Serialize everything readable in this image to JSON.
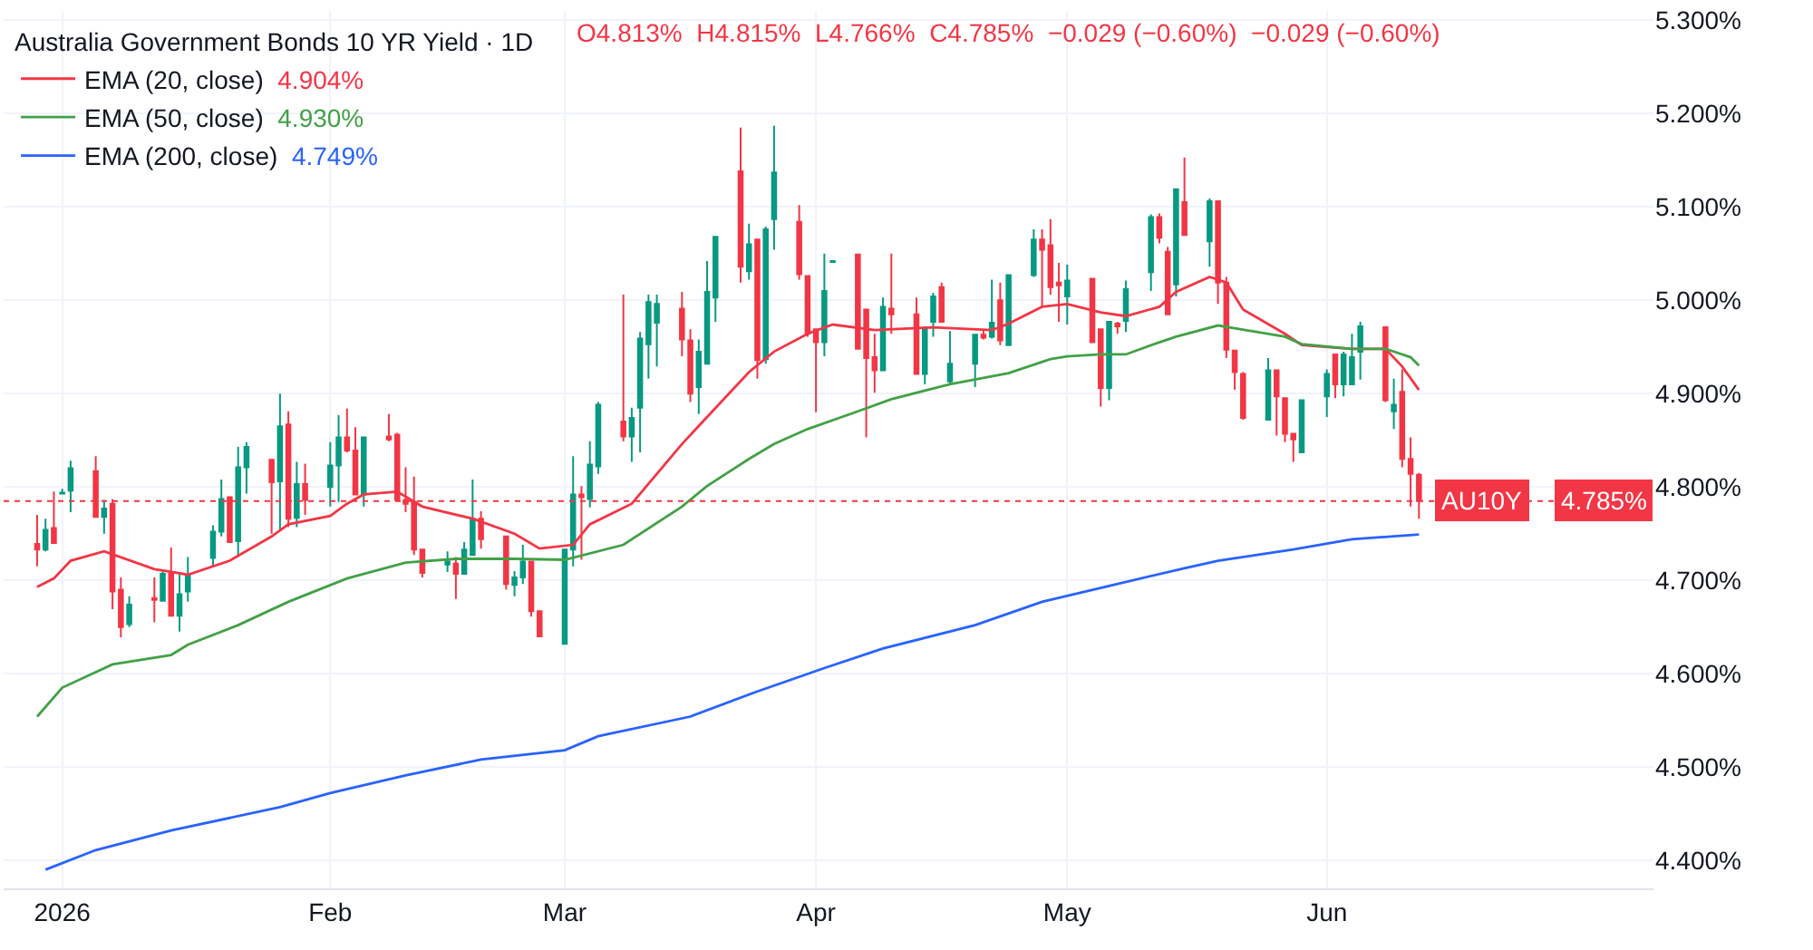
{
  "chart_data": {
    "type": "candlestick",
    "title": "Australia Government Bonds 10 YR Yield · 1D",
    "annotations": [
      "O4.813%  H4.815%  L4.766%  C4.785%  −0.029 (−0.60%)  −0.029 (−0.60%)",
      {
        "text": "4.785%",
        "y": 4.785
      }
    ],
    "x": [
      "2025-12-29",
      "2025-12-30",
      "2025-12-31",
      "2026-01-01",
      "2026-01-02",
      "2026-01-05",
      "2026-01-06",
      "2026-01-07",
      "2026-01-08",
      "2026-01-09",
      "2026-01-12",
      "2026-01-13",
      "2026-01-14",
      "2026-01-15",
      "2026-01-16",
      "2026-01-19",
      "2026-01-20",
      "2026-01-21",
      "2026-01-22",
      "2026-01-23",
      "2026-01-26",
      "2026-01-27",
      "2026-01-28",
      "2026-01-29",
      "2026-01-30",
      "2026-02-02",
      "2026-02-03",
      "2026-02-04",
      "2026-02-05",
      "2026-02-06",
      "2026-02-09",
      "2026-02-10",
      "2026-02-11",
      "2026-02-12",
      "2026-02-13",
      "2026-02-16",
      "2026-02-17",
      "2026-02-18",
      "2026-02-19",
      "2026-02-20",
      "2026-02-23",
      "2026-02-24",
      "2026-02-25",
      "2026-02-26",
      "2026-02-27",
      "2026-03-02",
      "2026-03-03",
      "2026-03-04",
      "2026-03-05",
      "2026-03-06",
      "2026-03-09",
      "2026-03-10",
      "2026-03-11",
      "2026-03-12",
      "2026-03-13",
      "2026-03-16",
      "2026-03-17",
      "2026-03-18",
      "2026-03-19",
      "2026-03-20",
      "2026-03-23",
      "2026-03-24",
      "2026-03-25",
      "2026-03-26",
      "2026-03-27",
      "2026-03-30",
      "2026-03-31",
      "2026-04-01",
      "2026-04-02",
      "2026-04-03",
      "2026-04-06",
      "2026-04-07",
      "2026-04-08",
      "2026-04-09",
      "2026-04-10",
      "2026-04-13",
      "2026-04-14",
      "2026-04-15",
      "2026-04-16",
      "2026-04-17",
      "2026-04-20",
      "2026-04-21",
      "2026-04-22",
      "2026-04-23",
      "2026-04-24",
      "2026-04-27",
      "2026-04-28",
      "2026-04-29",
      "2026-04-30",
      "2026-05-01",
      "2026-05-04",
      "2026-05-05",
      "2026-05-06",
      "2026-05-07",
      "2026-05-08",
      "2026-05-11",
      "2026-05-12",
      "2026-05-13",
      "2026-05-14",
      "2026-05-15",
      "2026-05-18",
      "2026-05-19",
      "2026-05-20",
      "2026-05-21",
      "2026-05-22",
      "2026-05-25",
      "2026-05-26",
      "2026-05-27",
      "2026-05-28",
      "2026-05-29",
      "2026-06-01",
      "2026-06-02",
      "2026-06-03",
      "2026-06-04",
      "2026-06-05",
      "2026-06-08",
      "2026-06-09",
      "2026-06-10",
      "2026-06-11",
      "2026-06-12"
    ],
    "ohlc": [
      [
        4.739,
        4.77,
        4.715,
        4.733
      ],
      [
        4.733,
        4.766,
        4.731,
        4.754
      ],
      [
        4.756,
        4.795,
        4.739,
        4.74
      ],
      [
        4.793,
        4.798,
        4.792,
        4.794
      ],
      [
        4.796,
        4.828,
        4.773,
        4.82
      ],
      [
        4.817,
        4.833,
        4.767,
        4.768
      ],
      [
        4.768,
        4.786,
        4.75,
        4.777
      ],
      [
        4.782,
        4.787,
        4.669,
        4.688
      ],
      [
        4.69,
        4.703,
        4.639,
        4.65
      ],
      [
        4.653,
        4.683,
        4.65,
        4.674
      ],
      [
        4.681,
        4.703,
        4.655,
        4.679
      ],
      [
        4.678,
        4.709,
        4.677,
        4.707
      ],
      [
        4.707,
        4.735,
        4.661,
        4.662
      ],
      [
        4.662,
        4.706,
        4.645,
        4.685
      ],
      [
        4.688,
        4.725,
        4.677,
        4.706
      ],
      [
        4.724,
        4.759,
        4.715,
        4.752
      ],
      [
        4.752,
        4.808,
        4.747,
        4.787
      ],
      [
        4.789,
        4.789,
        4.74,
        4.741
      ],
      [
        4.742,
        4.843,
        4.725,
        4.821
      ],
      [
        4.821,
        4.848,
        4.793,
        4.843
      ],
      [
        4.829,
        4.829,
        4.75,
        4.805
      ],
      [
        4.806,
        4.9,
        4.754,
        4.865
      ],
      [
        4.867,
        4.881,
        4.757,
        4.766
      ],
      [
        4.767,
        4.827,
        4.757,
        4.803
      ],
      [
        4.803,
        4.825,
        4.77,
        4.786
      ],
      [
        4.8,
        4.848,
        4.779,
        4.823
      ],
      [
        4.823,
        4.877,
        4.784,
        4.853
      ],
      [
        4.853,
        4.884,
        4.837,
        4.839
      ],
      [
        4.839,
        4.864,
        4.791,
        4.792
      ],
      [
        4.792,
        4.854,
        4.779,
        4.853
      ],
      [
        4.854,
        4.878,
        4.849,
        4.851
      ],
      [
        4.856,
        4.858,
        4.784,
        4.786
      ],
      [
        4.786,
        4.821,
        4.773,
        4.782
      ],
      [
        4.784,
        4.811,
        4.727,
        4.733
      ],
      [
        4.733,
        4.733,
        4.703,
        4.708
      ],
      [
        4.717,
        4.731,
        4.709,
        4.72
      ],
      [
        4.718,
        4.725,
        4.68,
        4.707
      ],
      [
        4.707,
        4.741,
        4.706,
        4.733
      ],
      [
        4.727,
        4.808,
        4.727,
        4.766
      ],
      [
        4.766,
        4.774,
        4.734,
        4.744
      ],
      [
        4.747,
        4.747,
        4.69,
        4.696
      ],
      [
        4.695,
        4.71,
        4.683,
        4.703
      ],
      [
        4.703,
        4.738,
        4.696,
        4.72
      ],
      [
        4.72,
        4.72,
        4.661,
        4.667
      ],
      [
        4.667,
        4.667,
        4.639,
        4.64
      ],
      [
        4.632,
        4.734,
        4.632,
        4.733
      ],
      [
        4.733,
        4.833,
        4.715,
        4.792
      ],
      [
        4.792,
        4.801,
        4.722,
        4.789
      ],
      [
        4.787,
        4.849,
        4.778,
        4.824
      ],
      [
        4.822,
        4.891,
        4.814,
        4.888
      ],
      [
        4.87,
        5.006,
        4.849,
        4.854
      ],
      [
        4.854,
        4.885,
        4.827,
        4.874
      ],
      [
        4.885,
        4.966,
        4.837,
        4.959
      ],
      [
        4.953,
        5.006,
        4.916,
        4.998
      ],
      [
        4.976,
        5.006,
        4.929,
        4.996
      ],
      [
        4.991,
        5.009,
        4.94,
        4.958
      ],
      [
        4.957,
        4.969,
        4.891,
        4.9
      ],
      [
        4.907,
        4.958,
        4.878,
        4.945
      ],
      [
        4.932,
        5.042,
        4.932,
        5.009
      ],
      [
        5.003,
        5.068,
        4.977,
        5.068
      ],
      [
        5.138,
        5.185,
        5.019,
        5.036
      ],
      [
        5.031,
        5.082,
        5.022,
        5.06
      ],
      [
        5.065,
        5.065,
        4.916,
        4.936
      ],
      [
        4.937,
        5.079,
        4.932,
        5.076
      ],
      [
        5.087,
        5.187,
        5.054,
        5.137
      ],
      [
        5.084,
        5.102,
        5.022,
        5.028
      ],
      [
        5.026,
        5.026,
        4.961,
        4.964
      ],
      [
        4.969,
        4.969,
        4.88,
        4.955
      ],
      [
        4.955,
        5.05,
        4.94,
        5.01
      ],
      [
        5.041,
        5.043,
        5.041,
        5.042
      ],
      [
        5.049,
        5.049,
        4.948,
        4.948
      ],
      [
        4.99,
        4.99,
        4.853,
        4.938
      ],
      [
        4.939,
        4.964,
        4.901,
        4.925
      ],
      [
        4.925,
        5.003,
        4.925,
        4.993
      ],
      [
        4.991,
        5.05,
        4.964,
        4.985
      ],
      [
        4.985,
        5.003,
        4.92,
        4.921
      ],
      [
        4.921,
        4.972,
        4.91,
        4.97
      ],
      [
        4.977,
        5.008,
        4.961,
        5.004
      ],
      [
        5.014,
        5.019,
        4.976,
        4.977
      ],
      [
        4.913,
        4.967,
        4.91,
        4.932
      ],
      [
        4.932,
        4.963,
        4.907,
        4.963
      ],
      [
        4.963,
        4.968,
        4.958,
        4.96
      ],
      [
        4.961,
        5.022,
        4.959,
        4.976
      ],
      [
        5.0,
        5.019,
        4.952,
        4.957
      ],
      [
        4.952,
        5.027,
        4.952,
        5.027
      ],
      [
        5.027,
        5.076,
        5.025,
        5.065
      ],
      [
        5.065,
        5.076,
        4.993,
        5.054
      ],
      [
        5.059,
        5.087,
        5.006,
        5.014
      ],
      [
        5.019,
        5.04,
        4.977,
        5.016
      ],
      [
        5.004,
        5.038,
        4.974,
        5.021
      ],
      [
        5.023,
        5.023,
        4.955,
        4.955
      ],
      [
        4.969,
        4.969,
        4.886,
        4.906
      ],
      [
        4.906,
        4.977,
        4.893,
        4.977
      ],
      [
        4.975,
        4.977,
        4.964,
        4.972
      ],
      [
        4.978,
        5.021,
        4.966,
        5.012
      ],
      [
        5.03,
        5.092,
        5.01,
        5.089
      ],
      [
        5.089,
        5.093,
        5.061,
        5.067
      ],
      [
        5.052,
        5.057,
        4.985,
        4.985
      ],
      [
        5.017,
        5.119,
        5.004,
        5.119
      ],
      [
        5.105,
        5.153,
        5.07,
        5.07
      ],
      [
        5.063,
        5.109,
        5.036,
        5.106
      ],
      [
        5.106,
        5.106,
        4.996,
        5.019
      ],
      [
        5.019,
        5.025,
        4.938,
        4.947
      ],
      [
        4.946,
        4.946,
        4.904,
        4.923
      ],
      [
        4.921,
        4.923,
        4.872,
        4.874
      ],
      [
        4.872,
        4.938,
        4.872,
        4.925
      ],
      [
        4.925,
        4.925,
        4.855,
        4.897
      ],
      [
        4.895,
        4.895,
        4.848,
        4.857
      ],
      [
        4.857,
        4.857,
        4.827,
        4.851
      ],
      [
        4.837,
        4.894,
        4.837,
        4.893
      ],
      [
        4.897,
        4.926,
        4.875,
        4.921
      ],
      [
        4.942,
        4.942,
        4.895,
        4.91
      ],
      [
        4.91,
        4.945,
        4.897,
        4.942
      ],
      [
        4.91,
        4.964,
        4.91,
        4.939
      ],
      [
        4.945,
        4.977,
        4.915,
        4.972
      ],
      [
        4.971,
        4.972,
        4.891,
        4.893
      ],
      [
        4.881,
        4.916,
        4.862,
        4.888
      ],
      [
        4.902,
        4.926,
        4.821,
        4.83
      ],
      [
        4.83,
        4.853,
        4.779,
        4.814
      ],
      [
        4.813,
        4.815,
        4.766,
        4.785
      ]
    ],
    "colors": [
      "#f23645",
      "#089981",
      "#f23645",
      "#089981",
      "#089981",
      "#f23645",
      "#089981",
      "#f23645",
      "#f23645",
      "#089981",
      "#f23645",
      "#089981",
      "#f23645",
      "#089981",
      "#089981",
      "#089981",
      "#089981",
      "#f23645",
      "#089981",
      "#089981",
      "#f23645",
      "#089981",
      "#f23645",
      "#089981",
      "#f23645",
      "#089981",
      "#089981",
      "#f23645",
      "#f23645",
      "#089981",
      "#f23645",
      "#f23645",
      "#f23645",
      "#f23645",
      "#f23645",
      "#089981",
      "#f23645",
      "#089981",
      "#089981",
      "#f23645",
      "#f23645",
      "#089981",
      "#089981",
      "#f23645",
      "#f23645",
      "#089981",
      "#089981",
      "#f23645",
      "#089981",
      "#089981",
      "#f23645",
      "#089981",
      "#089981",
      "#089981",
      "#089981",
      "#f23645",
      "#f23645",
      "#089981",
      "#089981",
      "#089981",
      "#f23645",
      "#089981",
      "#f23645",
      "#089981",
      "#089981",
      "#f23645",
      "#f23645",
      "#f23645",
      "#089981",
      "#089981",
      "#f23645",
      "#f23645",
      "#f23645",
      "#089981",
      "#f23645",
      "#f23645",
      "#089981",
      "#089981",
      "#f23645",
      "#089981",
      "#089981",
      "#f23645",
      "#089981",
      "#f23645",
      "#089981",
      "#089981",
      "#f23645",
      "#f23645",
      "#f23645",
      "#089981",
      "#f23645",
      "#f23645",
      "#089981",
      "#f23645",
      "#089981",
      "#089981",
      "#f23645",
      "#f23645",
      "#089981",
      "#f23645",
      "#089981",
      "#f23645",
      "#f23645",
      "#f23645",
      "#f23645",
      "#089981",
      "#f23645",
      "#f23645",
      "#f23645",
      "#089981",
      "#089981",
      "#f23645",
      "#089981",
      "#089981",
      "#089981",
      "#f23645",
      "#089981",
      "#f23645",
      "#f23645",
      "#f23645"
    ],
    "series": [
      {
        "type": "line",
        "name": "EMA (20, close) 4.904%",
        "color": "#f23645",
        "x": [
          "2025-12-29",
          "2025-12-31",
          "2026-01-02",
          "2026-01-06",
          "2026-01-12",
          "2026-01-14",
          "2026-01-16",
          "2026-01-21",
          "2026-01-26",
          "2026-01-28",
          "2026-02-02",
          "2026-02-04",
          "2026-02-06",
          "2026-02-10",
          "2026-02-13",
          "2026-02-19",
          "2026-02-24",
          "2026-02-27",
          "2026-03-03",
          "2026-03-05",
          "2026-03-10",
          "2026-03-16",
          "2026-03-19",
          "2026-03-24",
          "2026-03-27",
          "2026-03-31",
          "2026-04-03",
          "2026-04-08",
          "2026-04-15",
          "2026-04-22",
          "2026-04-24",
          "2026-04-28",
          "2026-05-01",
          "2026-05-05",
          "2026-05-08",
          "2026-05-12",
          "2026-05-14",
          "2026-05-18",
          "2026-05-20",
          "2026-05-22",
          "2026-05-27",
          "2026-05-29",
          "2026-06-04",
          "2026-06-08",
          "2026-06-10",
          "2026-06-12"
        ],
        "values": [
          4.693,
          4.702,
          4.721,
          4.731,
          4.712,
          4.709,
          4.706,
          4.721,
          4.747,
          4.76,
          4.769,
          4.782,
          4.792,
          4.795,
          4.779,
          4.766,
          4.75,
          4.734,
          4.738,
          4.76,
          4.782,
          4.846,
          4.875,
          4.923,
          4.945,
          4.964,
          4.974,
          4.968,
          4.971,
          4.968,
          4.975,
          4.993,
          4.996,
          4.987,
          4.983,
          4.993,
          5.009,
          5.025,
          5.019,
          4.99,
          4.964,
          4.952,
          4.948,
          4.948,
          4.929,
          4.904
        ]
      },
      {
        "type": "line",
        "name": "EMA (50, close) 4.930%",
        "color": "#43a047",
        "x": [
          "2025-12-29",
          "2026-01-01",
          "2026-01-07",
          "2026-01-14",
          "2026-01-16",
          "2026-01-22",
          "2026-01-28",
          "2026-02-04",
          "2026-02-11",
          "2026-02-17",
          "2026-02-24",
          "2026-03-02",
          "2026-03-09",
          "2026-03-16",
          "2026-03-19",
          "2026-03-24",
          "2026-03-27",
          "2026-03-31",
          "2026-04-06",
          "2026-04-10",
          "2026-04-17",
          "2026-04-24",
          "2026-04-29",
          "2026-05-01",
          "2026-05-05",
          "2026-05-08",
          "2026-05-12",
          "2026-05-14",
          "2026-05-19",
          "2026-05-21",
          "2026-05-27",
          "2026-05-29",
          "2026-06-04",
          "2026-06-08",
          "2026-06-11",
          "2026-06-12"
        ],
        "values": [
          4.554,
          4.585,
          4.61,
          4.62,
          4.631,
          4.652,
          4.677,
          4.702,
          4.719,
          4.723,
          4.723,
          4.722,
          4.738,
          4.779,
          4.801,
          4.83,
          4.846,
          4.862,
          4.881,
          4.894,
          4.91,
          4.922,
          4.937,
          4.94,
          4.942,
          4.942,
          4.955,
          4.961,
          4.973,
          4.97,
          4.961,
          4.953,
          4.948,
          4.948,
          4.939,
          4.93
        ]
      },
      {
        "type": "line",
        "name": "EMA (200, close) 4.749%",
        "color": "#2962ff",
        "x": [
          "2025-12-30",
          "2026-01-05",
          "2026-01-14",
          "2026-01-27",
          "2026-02-02",
          "2026-02-11",
          "2026-02-20",
          "2026-03-02",
          "2026-03-06",
          "2026-03-17",
          "2026-03-25",
          "2026-04-02",
          "2026-04-09",
          "2026-04-20",
          "2026-04-28",
          "2026-05-06",
          "2026-05-15",
          "2026-05-19",
          "2026-05-28",
          "2026-06-04",
          "2026-06-12"
        ],
        "values": [
          4.39,
          4.411,
          4.432,
          4.457,
          4.472,
          4.491,
          4.508,
          4.518,
          4.533,
          4.554,
          4.581,
          4.606,
          4.627,
          4.652,
          4.677,
          4.694,
          4.713,
          4.721,
          4.733,
          4.744,
          4.749
        ]
      }
    ],
    "ref_lines": [
      {
        "axis": "y",
        "value": 4.785,
        "label": "AU10Y",
        "color": "#f23645",
        "line_style": "dotted"
      }
    ],
    "xlim": [
      "2025-12-25",
      "2026-07-10"
    ],
    "xticks": [
      {
        "value": "2026-01-01",
        "label": "2026"
      },
      {
        "value": "2026-02-02",
        "label": "Feb"
      },
      {
        "value": "2026-03-02",
        "label": "Mar"
      },
      {
        "value": "2026-04-01",
        "label": "Apr"
      },
      {
        "value": "2026-05-01",
        "label": "May"
      },
      {
        "value": "2026-06-01",
        "label": "Jun"
      }
    ],
    "ylim": [
      4.37,
      5.31
    ],
    "yticks": [
      {
        "value": 4.4,
        "label": "4.400%"
      },
      {
        "value": 4.5,
        "label": "4.500%"
      },
      {
        "value": 4.6,
        "label": "4.600%"
      },
      {
        "value": 4.7,
        "label": "4.700%"
      },
      {
        "value": 4.8,
        "label": "4.800%"
      },
      {
        "value": 4.9,
        "label": "4.900%"
      },
      {
        "value": 5.0,
        "label": "5.000%"
      },
      {
        "value": 5.1,
        "label": "5.100%"
      },
      {
        "value": 5.2,
        "label": "5.200%"
      },
      {
        "value": 5.3,
        "label": "5.300%"
      }
    ],
    "grid": true,
    "legend": "top left"
  }
}
